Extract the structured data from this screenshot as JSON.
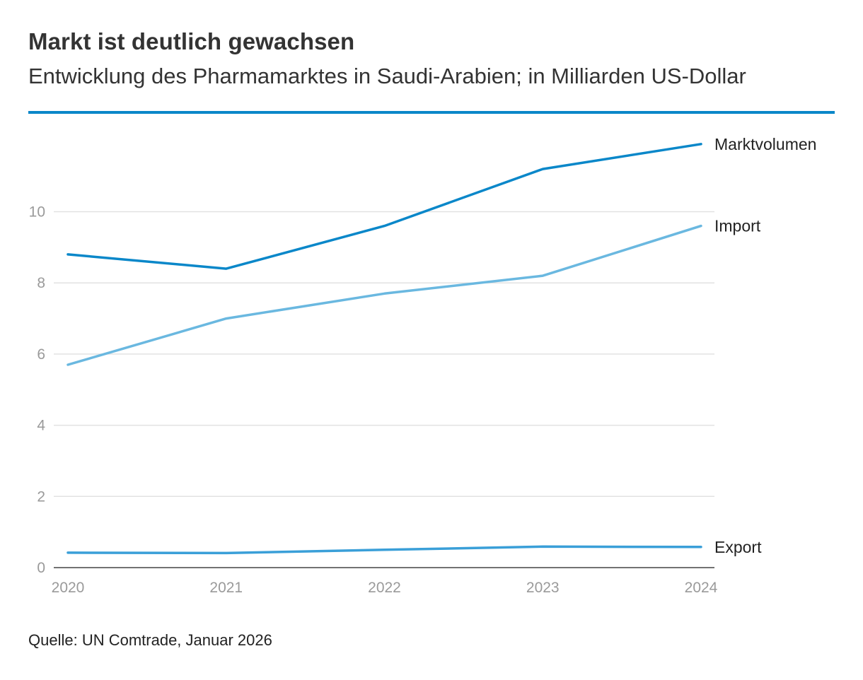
{
  "header": {
    "title": "Markt ist deutlich gewachsen",
    "subtitle": "Entwicklung des Pharmamarktes in Saudi-Arabien; in Milliarden US-Dollar"
  },
  "footer": {
    "source": "Quelle: UN Comtrade, Januar 2026"
  },
  "chart_data": {
    "type": "line",
    "title": "Markt ist deutlich gewachsen",
    "subtitle": "Entwicklung des Pharmamarktes in Saudi-Arabien; in Milliarden US-Dollar",
    "x": [
      "2020",
      "2021",
      "2022",
      "2023",
      "2024"
    ],
    "xlabel": "",
    "ylabel": "",
    "ylim": [
      0,
      12
    ],
    "yticks": [
      "0",
      "2",
      "4",
      "6",
      "8",
      "10"
    ],
    "grid": true,
    "series": [
      {
        "name": "Marktvolumen",
        "values": [
          8.8,
          8.4,
          9.6,
          11.2,
          11.9
        ],
        "color": "#0a87c9"
      },
      {
        "name": "Import",
        "values": [
          5.7,
          7.0,
          7.7,
          8.2,
          9.6
        ],
        "color": "#6ab8e0"
      },
      {
        "name": "Export",
        "values": [
          0.42,
          0.41,
          0.5,
          0.59,
          0.58
        ],
        "color": "#3a9fd8"
      }
    ]
  }
}
